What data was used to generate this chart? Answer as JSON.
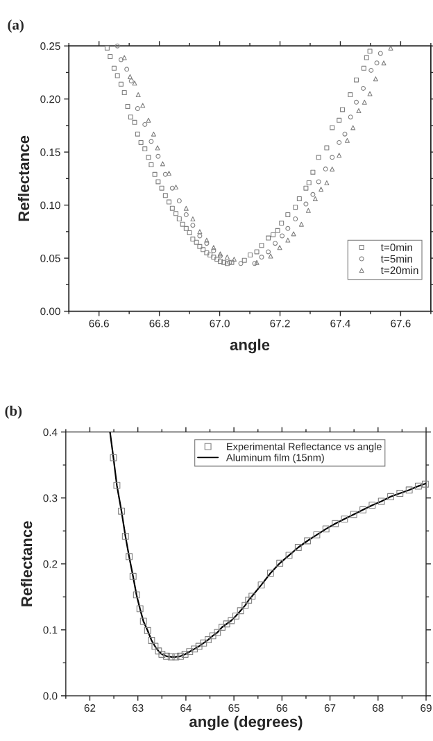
{
  "chart_data": [
    {
      "type": "scatter",
      "title": "(a)",
      "xlabel": "angle",
      "ylabel": "Reflectance",
      "xlim": [
        66.5,
        67.7
      ],
      "ylim": [
        0,
        0.25
      ],
      "xticks": [
        {
          "value": 66.5,
          "label": null
        },
        66.6,
        {
          "value": 66.7,
          "label": null
        },
        66.8,
        {
          "value": 66.9,
          "label": null
        },
        {
          "value": 67.0,
          "label": "67.0"
        },
        {
          "value": 67.1,
          "label": null
        },
        67.2,
        {
          "value": 67.3,
          "label": null
        },
        67.4,
        {
          "value": 67.5,
          "label": null
        },
        67.6,
        {
          "value": 67.7,
          "label": null
        }
      ],
      "yticks": [
        {
          "value": 0,
          "label": "0.00"
        },
        {
          "value": 0.025,
          "label": null
        },
        {
          "value": 0.05,
          "label": "0.05"
        },
        {
          "value": 0.075,
          "label": null
        },
        {
          "value": 0.1,
          "label": "0.10"
        },
        {
          "value": 0.125,
          "label": null
        },
        {
          "value": 0.15,
          "label": "0.15"
        },
        {
          "value": 0.175,
          "label": null
        },
        {
          "value": 0.2,
          "label": "0.20"
        },
        {
          "value": 0.225,
          "label": null
        },
        {
          "value": 0.25,
          "label": "0.25"
        }
      ],
      "legend": "bottom right",
      "grid": false,
      "series": [
        {
          "name": "t=0min",
          "color": "#808080",
          "marker": "square",
          "x": [
            66.627,
            66.637,
            66.65,
            66.661,
            66.673,
            66.684,
            66.695,
            66.705,
            66.718,
            66.728,
            66.739,
            66.752,
            66.764,
            66.773,
            66.785,
            66.796,
            66.808,
            66.82,
            66.832,
            66.843,
            66.855,
            66.866,
            66.877,
            66.889,
            66.9,
            66.911,
            66.923,
            66.934,
            66.945,
            66.957,
            66.968,
            66.98,
            66.991,
            67.002,
            67.014,
            67.025,
            67.04,
            67.082,
            67.101,
            67.123,
            67.139,
            67.161,
            67.177,
            67.192,
            67.205,
            67.226,
            67.251,
            67.264,
            67.286,
            67.296,
            67.309,
            67.328,
            67.355,
            67.373,
            67.396,
            67.407,
            67.433,
            67.453,
            67.478,
            67.487,
            67.498
          ],
          "values": [
            0.248,
            0.24,
            0.229,
            0.222,
            0.214,
            0.206,
            0.193,
            0.183,
            0.178,
            0.167,
            0.159,
            0.153,
            0.145,
            0.138,
            0.129,
            0.122,
            0.116,
            0.109,
            0.103,
            0.097,
            0.092,
            0.087,
            0.082,
            0.078,
            0.074,
            0.068,
            0.065,
            0.061,
            0.058,
            0.055,
            0.053,
            0.051,
            0.049,
            0.047,
            0.046,
            0.045,
            0.046,
            0.048,
            0.053,
            0.056,
            0.062,
            0.069,
            0.072,
            0.076,
            0.083,
            0.091,
            0.098,
            0.106,
            0.116,
            0.121,
            0.131,
            0.145,
            0.154,
            0.173,
            0.18,
            0.19,
            0.204,
            0.218,
            0.229,
            0.239,
            0.245
          ]
        },
        {
          "name": "t=5min",
          "color": "#808080",
          "marker": "circle",
          "x": [
            66.661,
            66.673,
            66.692,
            66.707,
            66.728,
            66.752,
            66.773,
            66.796,
            66.82,
            66.843,
            66.866,
            66.889,
            66.911,
            66.934,
            66.957,
            66.98,
            67.002,
            67.033,
            67.07,
            67.116,
            67.139,
            67.161,
            67.184,
            67.207,
            67.226,
            67.251,
            67.286,
            67.309,
            67.328,
            67.351,
            67.373,
            67.396,
            67.415,
            67.434,
            67.453,
            67.476,
            67.502,
            67.521,
            67.533
          ],
          "values": [
            0.25,
            0.237,
            0.228,
            0.217,
            0.191,
            0.176,
            0.16,
            0.146,
            0.129,
            0.116,
            0.104,
            0.091,
            0.081,
            0.071,
            0.064,
            0.057,
            0.052,
            0.046,
            0.045,
            0.045,
            0.051,
            0.056,
            0.064,
            0.071,
            0.078,
            0.087,
            0.101,
            0.11,
            0.122,
            0.134,
            0.145,
            0.159,
            0.167,
            0.183,
            0.197,
            0.21,
            0.227,
            0.234,
            0.243
          ]
        },
        {
          "name": "t=20min",
          "color": "#808080",
          "marker": "triangle",
          "x": [
            66.684,
            66.703,
            66.718,
            66.73,
            66.745,
            66.764,
            66.781,
            66.794,
            66.811,
            66.832,
            66.855,
            66.889,
            66.911,
            66.934,
            66.957,
            66.98,
            67.002,
            67.025,
            67.048,
            67.123,
            67.169,
            67.199,
            67.226,
            67.245,
            67.271,
            67.294,
            67.317,
            67.336,
            67.355,
            67.373,
            67.396,
            67.423,
            67.442,
            67.461,
            67.48,
            67.498,
            67.517,
            67.544,
            67.567
          ],
          "values": [
            0.239,
            0.221,
            0.215,
            0.204,
            0.194,
            0.18,
            0.167,
            0.154,
            0.139,
            0.13,
            0.117,
            0.097,
            0.087,
            0.075,
            0.067,
            0.06,
            0.054,
            0.051,
            0.049,
            0.046,
            0.052,
            0.06,
            0.067,
            0.073,
            0.082,
            0.095,
            0.106,
            0.115,
            0.121,
            0.134,
            0.147,
            0.161,
            0.173,
            0.189,
            0.197,
            0.205,
            0.219,
            0.234,
            0.248
          ]
        }
      ]
    },
    {
      "type": "scatter",
      "title": "(b)",
      "xlabel": "angle (degrees)",
      "ylabel": "Reflectance",
      "xlim": [
        61.5,
        69
      ],
      "ylim": [
        0,
        0.4
      ],
      "xticks": [
        {
          "value": 61.5,
          "label": null
        },
        62,
        {
          "value": 62.5,
          "label": null
        },
        63,
        {
          "value": 63.5,
          "label": null
        },
        64,
        {
          "value": 64.5,
          "label": null
        },
        65,
        {
          "value": 65.5,
          "label": null
        },
        66,
        {
          "value": 66.5,
          "label": null
        },
        67,
        {
          "value": 67.5,
          "label": null
        },
        68,
        {
          "value": 68.5,
          "label": null
        },
        69
      ],
      "yticks": [
        {
          "value": 0,
          "label": "0.0"
        },
        {
          "value": 0.05,
          "label": null
        },
        0.1,
        {
          "value": 0.15,
          "label": null
        },
        0.2,
        {
          "value": 0.25,
          "label": null
        },
        0.3,
        {
          "value": 0.35,
          "label": null
        },
        0.4
      ],
      "legend": "top right",
      "grid": false,
      "series": [
        {
          "name": "Experimental Reflectance vs angle",
          "color": "#808080",
          "marker": "square",
          "x": [
            62.491,
            62.563,
            62.659,
            62.741,
            62.818,
            62.9,
            62.972,
            63.044,
            63.116,
            63.203,
            63.285,
            63.357,
            63.429,
            63.501,
            63.597,
            63.694,
            63.79,
            63.886,
            63.982,
            64.078,
            64.175,
            64.271,
            64.367,
            64.463,
            64.559,
            64.656,
            64.752,
            64.848,
            64.944,
            65.04,
            65.137,
            65.233,
            65.305,
            65.377,
            65.569,
            65.762,
            65.954,
            66.147,
            66.339,
            66.531,
            66.724,
            66.916,
            67.109,
            67.301,
            67.493,
            67.686,
            67.878,
            68.071,
            68.263,
            68.455,
            68.648,
            68.84,
            68.984
          ],
          "values": [
            0.361,
            0.319,
            0.28,
            0.242,
            0.211,
            0.181,
            0.153,
            0.132,
            0.113,
            0.099,
            0.084,
            0.075,
            0.068,
            0.063,
            0.06,
            0.059,
            0.059,
            0.06,
            0.063,
            0.067,
            0.071,
            0.075,
            0.08,
            0.085,
            0.091,
            0.096,
            0.104,
            0.109,
            0.114,
            0.121,
            0.129,
            0.137,
            0.145,
            0.151,
            0.168,
            0.186,
            0.201,
            0.213,
            0.225,
            0.235,
            0.244,
            0.253,
            0.261,
            0.268,
            0.275,
            0.282,
            0.289,
            0.295,
            0.302,
            0.307,
            0.312,
            0.318,
            0.321
          ]
        },
        {
          "name": "Aluminum film (15nm)",
          "type": "line",
          "color": "#000000",
          "line_style": "solid",
          "x": [
            62.42,
            62.491,
            62.563,
            62.659,
            62.741,
            62.818,
            62.9,
            62.972,
            63.044,
            63.116,
            63.203,
            63.285,
            63.357,
            63.429,
            63.501,
            63.597,
            63.694,
            63.79,
            63.886,
            63.982,
            64.078,
            64.175,
            64.271,
            64.367,
            64.463,
            64.559,
            64.656,
            64.752,
            64.848,
            64.944,
            65.04,
            65.137,
            65.233,
            65.305,
            65.377,
            65.569,
            65.762,
            65.954,
            66.147,
            66.339,
            66.531,
            66.724,
            66.916,
            67.109,
            67.301,
            67.493,
            67.686,
            67.878,
            68.071,
            68.263,
            68.455,
            68.648,
            68.84,
            69.0
          ],
          "values": [
            0.4,
            0.361,
            0.319,
            0.28,
            0.242,
            0.211,
            0.181,
            0.153,
            0.132,
            0.113,
            0.099,
            0.084,
            0.075,
            0.068,
            0.063,
            0.06,
            0.059,
            0.059,
            0.06,
            0.063,
            0.067,
            0.071,
            0.075,
            0.08,
            0.085,
            0.091,
            0.096,
            0.104,
            0.109,
            0.114,
            0.121,
            0.129,
            0.137,
            0.145,
            0.151,
            0.168,
            0.186,
            0.201,
            0.213,
            0.225,
            0.235,
            0.244,
            0.253,
            0.261,
            0.268,
            0.275,
            0.282,
            0.289,
            0.295,
            0.302,
            0.307,
            0.312,
            0.318,
            0.322
          ]
        }
      ]
    }
  ]
}
